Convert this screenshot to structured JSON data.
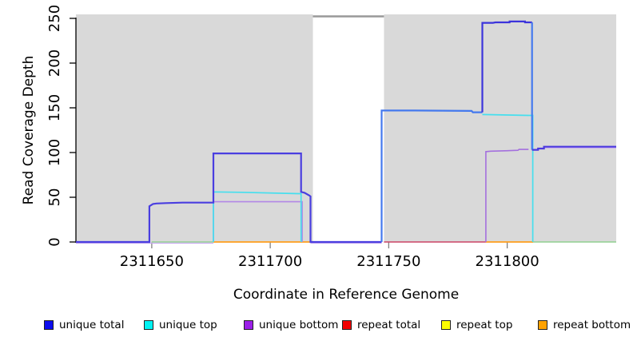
{
  "chart_data": {
    "type": "line",
    "subtype": "step-coverage",
    "title": "",
    "xlabel": "Coordinate in Reference Genome",
    "ylabel": "Read Coverage Depth",
    "xlim": [
      2311618,
      2311846
    ],
    "ylim": [
      0,
      250
    ],
    "x_ticks": [
      2311650,
      2311700,
      2311750,
      2311800
    ],
    "y_ticks": [
      0,
      50,
      100,
      150,
      200,
      250
    ],
    "grid": false,
    "legend_position": "bottom",
    "shading": {
      "color": "#d9d9d9",
      "regions": [
        [
          2311618,
          2311718
        ],
        [
          2311748,
          2311846
        ]
      ]
    },
    "gap_top_border": {
      "x0": 2311718,
      "x1": 2311748,
      "color": "#999999",
      "width": 2.4
    },
    "axis_colors": {
      "y_axis": "#000000",
      "x_tick": "#808080"
    },
    "draw_order": [
      4,
      5,
      3,
      2,
      1,
      0
    ],
    "series": [
      {
        "name": "unique total",
        "legend_color": "#0d0dee",
        "lines": [
          {
            "color": "#4a3ee0",
            "w": 2.2,
            "pts": [
              [
                2311618,
                0
              ],
              [
                2311649,
                0
              ],
              [
                2311649,
                40
              ],
              [
                2311650.5,
                42.5
              ],
              [
                2311652,
                43
              ],
              [
                2311656,
                43.5
              ],
              [
                2311663,
                44
              ],
              [
                2311676,
                44
              ],
              [
                2311676,
                99
              ],
              [
                2311713,
                99
              ],
              [
                2311713,
                56
              ],
              [
                2311714.5,
                55
              ],
              [
                2311716.5,
                52
              ],
              [
                2311717,
                51
              ],
              [
                2311717,
                0
              ],
              [
                2311747,
                0
              ]
            ]
          },
          {
            "color": "#4479ee",
            "w": 2.2,
            "pts": [
              [
                2311747,
                0
              ],
              [
                2311747,
                147
              ],
              [
                2311761,
                147
              ],
              [
                2311785,
                146.5
              ],
              [
                2311785.5,
                145
              ],
              [
                2311789.5,
                145
              ]
            ]
          },
          {
            "color": "#3c34dc",
            "w": 2.2,
            "pts": [
              [
                2311789.5,
                145
              ],
              [
                2311789.5,
                245
              ],
              [
                2311794,
                245
              ],
              [
                2311795,
                245.5
              ],
              [
                2311801,
                245.5
              ],
              [
                2311801,
                246.5
              ],
              [
                2311807.5,
                246.5
              ],
              [
                2311807.5,
                245.5
              ],
              [
                2311810.5,
                245.5
              ]
            ]
          },
          {
            "color": "#4479ee",
            "w": 2.2,
            "pts": [
              [
                2311810.5,
                245.5
              ],
              [
                2311810.5,
                103
              ]
            ]
          },
          {
            "color": "#4c3ade",
            "w": 2.2,
            "pts": [
              [
                2311810.5,
                103
              ],
              [
                2311813,
                103
              ],
              [
                2311813,
                104.5
              ],
              [
                2311815.5,
                104.5
              ],
              [
                2311815.5,
                106.5
              ],
              [
                2311846,
                106.5
              ]
            ]
          }
        ]
      },
      {
        "name": "unique top",
        "legend_color": "#00f2f2",
        "lines": [
          {
            "color": "#45dfee",
            "w": 1.7,
            "pts": [
              [
                2311676,
                0
              ],
              [
                2311676,
                56
              ],
              [
                2311688,
                55.5
              ],
              [
                2311712,
                54
              ],
              [
                2311713,
                54
              ],
              [
                2311713,
                0
              ]
            ]
          },
          {
            "color": "#45dfee",
            "w": 1.7,
            "pts": [
              [
                2311789.5,
                142.5
              ],
              [
                2311800,
                142
              ],
              [
                2311809,
                141.5
              ],
              [
                2311810.8,
                141.5
              ],
              [
                2311810.8,
                0
              ]
            ]
          }
        ]
      },
      {
        "name": "unique bottom",
        "legend_color": "#9b1fe8",
        "lines": [
          {
            "color": "#c8aaf0",
            "w": 1.3,
            "dy": 1.5,
            "pts": [
              [
                2311618,
                0
              ],
              [
                2311676,
                0
              ]
            ]
          },
          {
            "color": "#b288e6",
            "w": 1.6,
            "pts": [
              [
                2311676,
                0
              ],
              [
                2311676,
                45
              ],
              [
                2311713.5,
                45
              ],
              [
                2311713.5,
                0
              ]
            ]
          },
          {
            "color": "#c8aaf0",
            "w": 1.3,
            "dy": 1.5,
            "pts": [
              [
                2311717,
                0
              ],
              [
                2311747,
                0
              ]
            ]
          },
          {
            "color": "#a470de",
            "w": 1.6,
            "pts": [
              [
                2311791,
                0
              ],
              [
                2311791,
                101
              ],
              [
                2311793,
                101.5
              ],
              [
                2311799,
                102
              ],
              [
                2311804.5,
                102.5
              ],
              [
                2311805,
                103.5
              ],
              [
                2311809,
                103.5
              ]
            ]
          },
          {
            "color": "#c8aaf0",
            "w": 1.3,
            "dy": 1.5,
            "pts": [
              [
                2311815.5,
                106.5
              ],
              [
                2311846,
                106.5
              ]
            ]
          }
        ]
      },
      {
        "name": "repeat total",
        "legend_color": "#f30000",
        "lines": [
          {
            "color": "#cc4466",
            "w": 1.5,
            "pts": [
              [
                2311748,
                0
              ],
              [
                2311791,
                0
              ]
            ]
          }
        ]
      },
      {
        "name": "repeat top",
        "legend_color": "#fdfd00",
        "lines": [
          {
            "color": "#90cf90",
            "w": 1.5,
            "pts": [
              [
                2311650,
                0
              ],
              [
                2311676,
                0
              ]
            ]
          },
          {
            "color": "#90cf90",
            "w": 1.5,
            "pts": [
              [
                2311811,
                0
              ],
              [
                2311846,
                0
              ]
            ]
          }
        ]
      },
      {
        "name": "repeat bottom",
        "legend_color": "#ffa200",
        "lines": [
          {
            "color": "#ff9e1c",
            "w": 1.8,
            "pts": [
              [
                2311676,
                0
              ],
              [
                2311717,
                0
              ]
            ]
          },
          {
            "color": "#ff9e1c",
            "w": 1.8,
            "pts": [
              [
                2311791,
                0
              ],
              [
                2311811,
                0
              ]
            ]
          }
        ]
      }
    ]
  },
  "legend": {
    "items": [
      {
        "label": "unique total",
        "swatch_color": "#0d0dee"
      },
      {
        "label": "unique top",
        "swatch_color": "#00f2f2"
      },
      {
        "label": "unique bottom",
        "swatch_color": "#9b1fe8"
      },
      {
        "label": "repeat total",
        "swatch_color": "#f30000"
      },
      {
        "label": "repeat top",
        "swatch_color": "#fdfd00"
      },
      {
        "label": "repeat bottom",
        "swatch_color": "#ffa200"
      }
    ]
  }
}
